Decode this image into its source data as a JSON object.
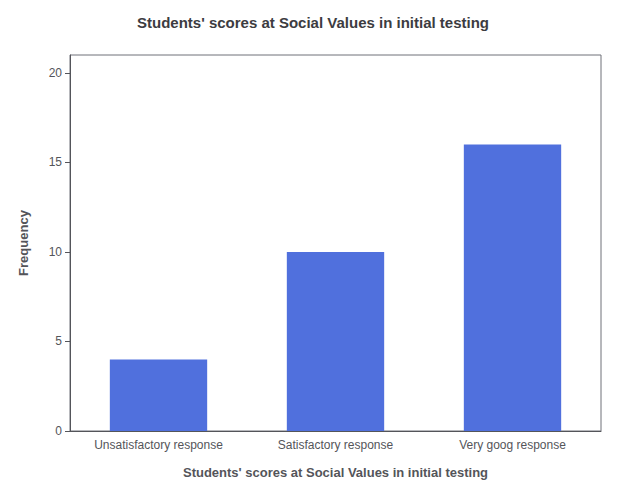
{
  "chart_data": {
    "type": "bar",
    "title": "Students' scores at Social Values in initial testing",
    "xlabel": "Students' scores at Social Values in initial testing",
    "ylabel": "Frequency",
    "categories": [
      "Unsatisfactory response",
      "Satisfactory response",
      "Very goog response"
    ],
    "values": [
      4,
      10,
      16
    ],
    "ylim": [
      0,
      21
    ],
    "yticks": [
      0,
      5,
      10,
      15,
      20
    ],
    "grid": false
  }
}
